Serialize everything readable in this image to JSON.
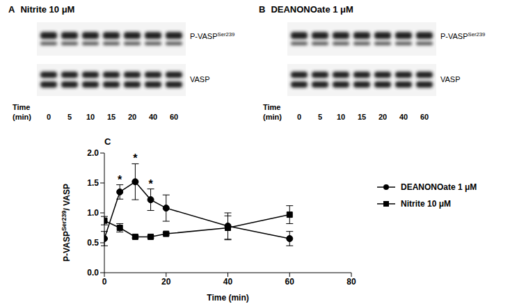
{
  "panels": [
    {
      "letter": "A",
      "title": "Nitrite 10 μM"
    },
    {
      "letter": "B",
      "title": "DEANONOate 1 μM"
    }
  ],
  "blots": {
    "rows": [
      [
        {
          "text": "P-VASP"
        },
        {
          "text": "Ser239",
          "sup": true
        }
      ],
      [
        {
          "text": "VASP"
        }
      ]
    ],
    "time_label": [
      "Time",
      "(min)"
    ],
    "times": [
      0,
      5,
      10,
      15,
      20,
      40,
      60
    ]
  },
  "chart_data": {
    "type": "scatter",
    "panel": "C",
    "x": [
      0,
      5,
      10,
      15,
      20,
      40,
      60
    ],
    "series": [
      {
        "name": "DEANONOate 1 μM",
        "color": "#000000",
        "marker": "circle",
        "line_style": "solid",
        "values": [
          0.57,
          1.35,
          1.52,
          1.22,
          1.08,
          0.78,
          0.57
        ],
        "errors": [
          0.12,
          0.12,
          0.3,
          0.18,
          0.22,
          0.22,
          0.12
        ]
      },
      {
        "name": "Nitrite 10 μM",
        "color": "#000000",
        "marker": "square",
        "line_style": "solid",
        "values": [
          0.87,
          0.75,
          0.6,
          0.6,
          0.65,
          0.75,
          0.97
        ],
        "errors": [
          0.07,
          0.07,
          0.02,
          0.02,
          0.02,
          0.2,
          0.15
        ]
      }
    ],
    "xlim": [
      0,
      80
    ],
    "xticks": [
      0,
      20,
      40,
      60,
      80
    ],
    "ylim": [
      0,
      2
    ],
    "yticks": [
      {
        "value": 0,
        "label": "0.0"
      },
      {
        "value": 0.5,
        "label": "0.5"
      },
      {
        "value": 1,
        "label": "1.0"
      },
      {
        "value": 1.5,
        "label": "1.5"
      },
      {
        "value": 2,
        "label": "2.0"
      }
    ],
    "xlabel": "Time (min)",
    "ylabel": [
      {
        "text": "P-VASP"
      },
      {
        "text": "Ser239",
        "sup": true
      },
      {
        "text": "/ VASP"
      }
    ],
    "annotations": [
      {
        "x": 5,
        "text": "*",
        "series": "DEANONOate 1 μM"
      },
      {
        "x": 10,
        "text": "*",
        "series": "DEANONOate 1 μM"
      },
      {
        "x": 15,
        "text": "*",
        "series": "DEANONOate 1 μM"
      }
    ],
    "legend": "right"
  }
}
